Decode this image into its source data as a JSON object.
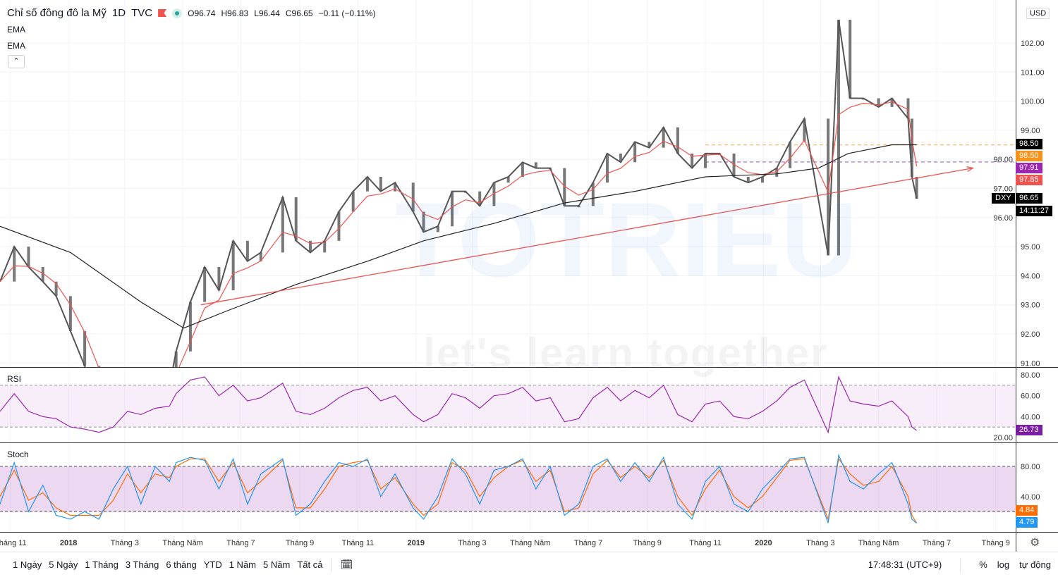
{
  "header": {
    "title": "Chỉ số đồng đô la Mỹ",
    "interval": "1D",
    "exchange": "TVC",
    "ohlc": {
      "o": "O96.74",
      "h": "H96.83",
      "l": "L96.44",
      "c": "C96.65",
      "change": "−0.11 (−0.11%)"
    },
    "flag_color": "#ef5350",
    "status_color": "#26a69a"
  },
  "indicators": [
    "EMA",
    "EMA"
  ],
  "collapse_icon": "chevron-up-icon",
  "watermark": {
    "logo_text": "TOTRIEU",
    "tagline": "let's learn together"
  },
  "price_axis": {
    "currency": "USD",
    "ticks": [
      "102.00",
      "101.00",
      "100.00",
      "99.00",
      "98.00",
      "97.00",
      "96.00",
      "95.00",
      "94.00",
      "93.00",
      "92.00",
      "91.00"
    ],
    "tags": [
      {
        "text": "98.50",
        "color": "#000000"
      },
      {
        "text": "98.50",
        "color": "#f7931a"
      },
      {
        "text": "97.91",
        "color": "#9c27b0"
      },
      {
        "text": "97.85",
        "color": "#ef5350"
      },
      {
        "text": "96.65",
        "color": "#000000"
      }
    ],
    "symbol_tag": "DXY",
    "countdown": "14:11:27"
  },
  "rsi": {
    "label": "RSI",
    "ticks": [
      "80.00",
      "60.00",
      "40.00",
      "20.00"
    ],
    "value": "26.73",
    "color": "#9c27b0",
    "band": [
      30,
      70
    ]
  },
  "stoch": {
    "label": "Stoch",
    "ticks": [
      "80.00",
      "40.00"
    ],
    "k_value": "4.79",
    "d_value": "4.84",
    "k_color": "#2196f3",
    "d_color": "#ff6d00",
    "band": [
      20,
      80
    ]
  },
  "time_axis": {
    "ticks": [
      [
        "2017-11-01",
        "Tháng 11"
      ],
      [
        "2018-01-01",
        "2018"
      ],
      [
        "2018-03-01",
        "Tháng 3"
      ],
      [
        "2018-05-01",
        "Tháng Năm"
      ],
      [
        "2018-07-01",
        "Tháng 7"
      ],
      [
        "2018-09-01",
        "Tháng 9"
      ],
      [
        "2018-11-01",
        "Tháng 11"
      ],
      [
        "2019-01-01",
        "2019"
      ],
      [
        "2019-03-01",
        "Tháng 3"
      ],
      [
        "2019-05-01",
        "Tháng Năm"
      ],
      [
        "2019-07-01",
        "Tháng 7"
      ],
      [
        "2019-09-01",
        "Tháng 9"
      ],
      [
        "2019-11-01",
        "Tháng 11"
      ],
      [
        "2020-01-01",
        "2020"
      ],
      [
        "2020-03-01",
        "Tháng 3"
      ],
      [
        "2020-05-01",
        "Tháng Năm"
      ],
      [
        "2020-07-01",
        "Tháng 7"
      ],
      [
        "2020-09-01",
        "Tháng 9"
      ]
    ]
  },
  "toolbar": {
    "ranges": [
      "1 Ngày",
      "5 Ngày",
      "1 Tháng",
      "3 Tháng",
      "6 tháng",
      "YTD",
      "1 Năm",
      "5 Năm",
      "Tất cả"
    ],
    "time": "17:48:31 (UTC+9)",
    "percent": "%",
    "log": "log",
    "auto": "tự động"
  },
  "chart_data": {
    "type": "line",
    "symbol": "DXY",
    "x_range": [
      "2017-10-21",
      "2020-09-22"
    ],
    "ylim": [
      90.8,
      103.2
    ],
    "price": [
      [
        "2017-10-21",
        93.8,
        45,
        30,
        40
      ],
      [
        "2017-11-05",
        95.0,
        62,
        85,
        75
      ],
      [
        "2017-11-20",
        94.3,
        45,
        20,
        35
      ],
      [
        "2017-12-05",
        93.8,
        40,
        55,
        45
      ],
      [
        "2017-12-19",
        93.3,
        38,
        15,
        25
      ],
      [
        "2018-01-03",
        92.1,
        30,
        10,
        15
      ],
      [
        "2018-01-18",
        90.9,
        28,
        20,
        15
      ],
      [
        "2018-02-02",
        89.3,
        25,
        10,
        15
      ],
      [
        "2018-02-17",
        89.0,
        30,
        50,
        35
      ],
      [
        "2018-03-04",
        89.8,
        45,
        80,
        70
      ],
      [
        "2018-03-18",
        89.6,
        42,
        30,
        45
      ],
      [
        "2018-04-02",
        89.9,
        48,
        80,
        70
      ],
      [
        "2018-04-17",
        90.2,
        50,
        60,
        65
      ],
      [
        "2018-04-24",
        91.4,
        62,
        85,
        80
      ],
      [
        "2018-05-09",
        93.1,
        75,
        92,
        90
      ],
      [
        "2018-05-24",
        94.3,
        78,
        88,
        90
      ],
      [
        "2018-06-08",
        93.5,
        60,
        50,
        60
      ],
      [
        "2018-06-23",
        95.2,
        70,
        90,
        85
      ],
      [
        "2018-07-08",
        94.5,
        55,
        30,
        45
      ],
      [
        "2018-07-22",
        94.8,
        58,
        70,
        60
      ],
      [
        "2018-08-14",
        96.7,
        72,
        90,
        88
      ],
      [
        "2018-08-28",
        95.2,
        45,
        15,
        25
      ],
      [
        "2018-09-12",
        94.8,
        42,
        30,
        25
      ],
      [
        "2018-09-27",
        95.2,
        48,
        60,
        50
      ],
      [
        "2018-10-12",
        96.2,
        58,
        85,
        80
      ],
      [
        "2018-10-27",
        96.9,
        65,
        80,
        85
      ],
      [
        "2018-11-11",
        97.4,
        68,
        90,
        88
      ],
      [
        "2018-11-25",
        96.9,
        55,
        40,
        50
      ],
      [
        "2018-12-10",
        97.2,
        60,
        70,
        65
      ],
      [
        "2018-12-29",
        96.2,
        42,
        25,
        30
      ],
      [
        "2019-01-09",
        95.5,
        35,
        10,
        15
      ],
      [
        "2019-01-24",
        95.7,
        42,
        40,
        30
      ],
      [
        "2019-02-08",
        96.9,
        62,
        90,
        85
      ],
      [
        "2019-02-22",
        96.9,
        58,
        70,
        75
      ],
      [
        "2019-03-09",
        96.4,
        48,
        30,
        40
      ],
      [
        "2019-03-24",
        97.2,
        60,
        75,
        65
      ],
      [
        "2019-04-08",
        97.4,
        62,
        80,
        80
      ],
      [
        "2019-04-23",
        97.9,
        68,
        90,
        88
      ],
      [
        "2019-05-07",
        97.7,
        55,
        50,
        60
      ],
      [
        "2019-05-22",
        97.7,
        58,
        80,
        75
      ],
      [
        "2019-06-06",
        96.4,
        35,
        15,
        20
      ],
      [
        "2019-06-21",
        96.4,
        38,
        30,
        25
      ],
      [
        "2019-07-06",
        97.2,
        58,
        80,
        70
      ],
      [
        "2019-07-21",
        98.2,
        68,
        90,
        88
      ],
      [
        "2019-08-04",
        97.9,
        55,
        60,
        65
      ],
      [
        "2019-08-19",
        98.6,
        65,
        85,
        80
      ],
      [
        "2019-09-03",
        98.4,
        58,
        60,
        65
      ],
      [
        "2019-09-18",
        99.1,
        70,
        92,
        88
      ],
      [
        "2019-10-03",
        98.2,
        42,
        30,
        40
      ],
      [
        "2019-10-18",
        97.7,
        35,
        10,
        15
      ],
      [
        "2019-11-01",
        98.2,
        52,
        60,
        50
      ],
      [
        "2019-11-16",
        98.2,
        55,
        80,
        75
      ],
      [
        "2019-12-01",
        97.4,
        40,
        30,
        40
      ],
      [
        "2019-12-16",
        97.2,
        38,
        20,
        25
      ],
      [
        "2019-12-31",
        97.4,
        45,
        50,
        40
      ],
      [
        "2020-01-15",
        97.7,
        55,
        70,
        65
      ],
      [
        "2020-01-29",
        98.6,
        68,
        90,
        88
      ],
      [
        "2020-02-13",
        99.4,
        75,
        92,
        90
      ],
      [
        "2020-03-09",
        94.7,
        25,
        5,
        10
      ],
      [
        "2020-03-20",
        102.8,
        78,
        95,
        90
      ],
      [
        "2020-04-01",
        100.1,
        55,
        60,
        70
      ],
      [
        "2020-04-15",
        100.1,
        52,
        50,
        55
      ],
      [
        "2020-05-01",
        99.8,
        50,
        70,
        60
      ],
      [
        "2020-05-15",
        100.1,
        55,
        85,
        80
      ],
      [
        "2020-06-01",
        99.4,
        40,
        30,
        40
      ],
      [
        "2020-06-05",
        97.4,
        30,
        10,
        15
      ],
      [
        "2020-06-10",
        96.65,
        26.73,
        4.79,
        4.84
      ]
    ],
    "price_columns": [
      "date",
      "close",
      "rsi",
      "stoch_k",
      "stoch_d"
    ],
    "ema_long": [
      [
        "2017-10-21",
        95.7
      ],
      [
        "2018-01-03",
        94.8
      ],
      [
        "2018-03-18",
        93.1
      ],
      [
        "2018-05-02",
        92.2
      ],
      [
        "2018-06-17",
        92.8
      ],
      [
        "2018-08-28",
        93.7
      ],
      [
        "2018-11-11",
        94.5
      ],
      [
        "2019-01-09",
        95.2
      ],
      [
        "2019-03-24",
        95.8
      ],
      [
        "2019-06-06",
        96.5
      ],
      [
        "2019-08-19",
        96.9
      ],
      [
        "2019-11-01",
        97.4
      ],
      [
        "2020-01-15",
        97.5
      ],
      [
        "2020-02-28",
        97.7
      ],
      [
        "2020-03-30",
        98.2
      ],
      [
        "2020-05-15",
        98.5
      ],
      [
        "2020-06-10",
        98.5
      ]
    ],
    "trendline": [
      [
        "2018-05-20",
        93.0
      ],
      [
        "2020-08-08",
        97.7
      ]
    ],
    "horizontal_lines": [
      {
        "price": 98.5,
        "color": "#f7c27a"
      },
      {
        "price": 97.91,
        "color": "#b48ad8"
      }
    ],
    "colors": {
      "price": "#555555",
      "ema_short": "#ef5350",
      "ema_long": "#222222",
      "trend": "#ef5350"
    }
  }
}
